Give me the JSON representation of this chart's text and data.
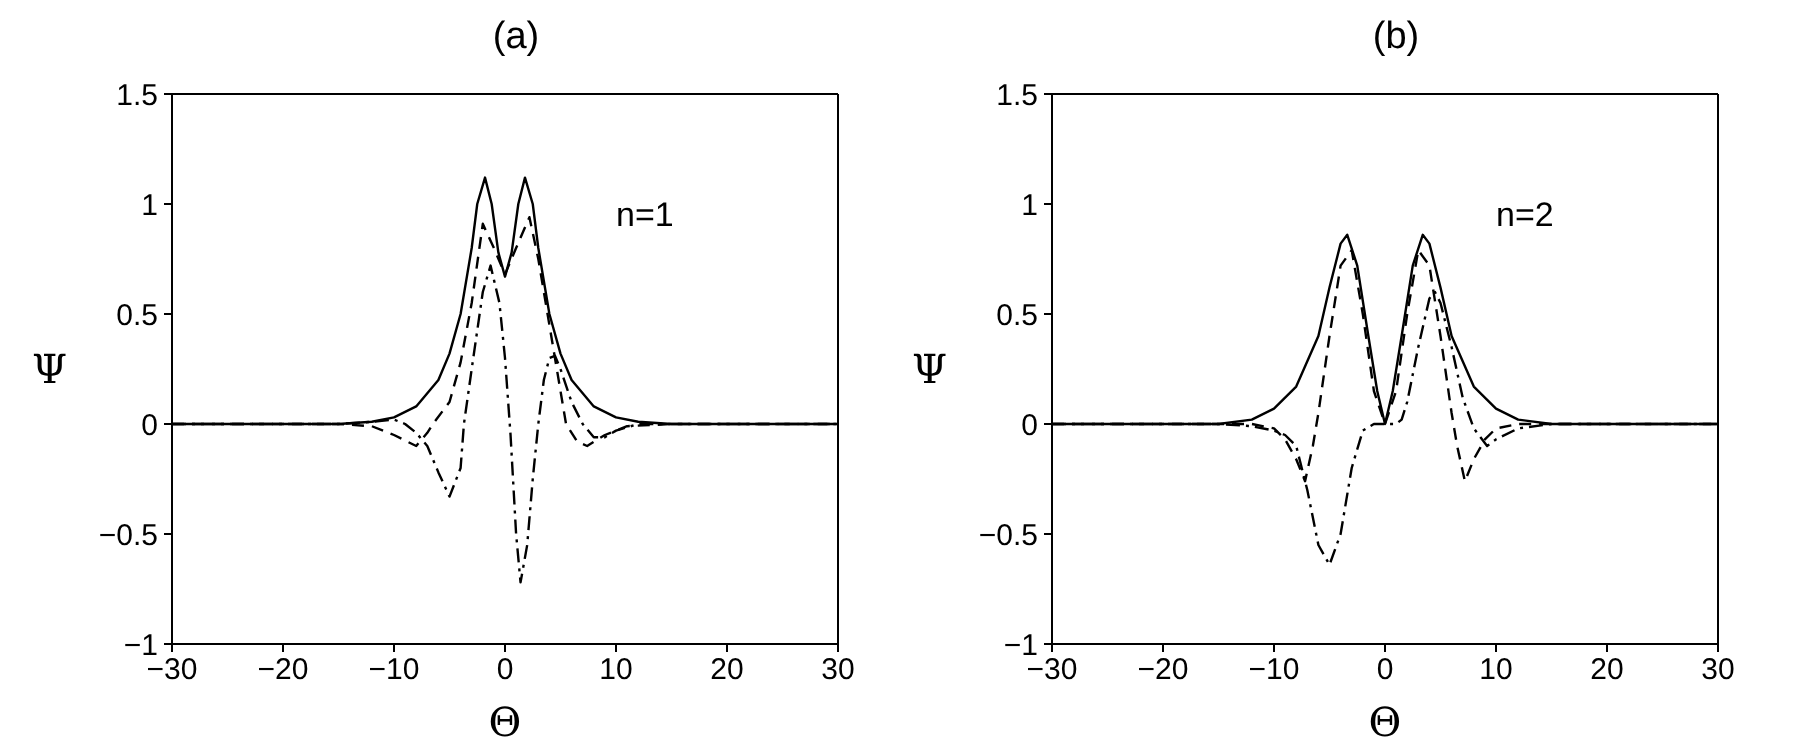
{
  "chart_data": [
    {
      "type": "line",
      "title": "(a)",
      "xlabel": "Θ",
      "ylabel": "Ψ",
      "annotations": [
        "n=1"
      ],
      "xlim": [
        -30,
        30
      ],
      "xticks": [
        -30,
        -20,
        -10,
        0,
        10,
        20,
        30
      ],
      "ylim": [
        -1,
        1.5
      ],
      "yticks": [
        -1,
        -0.5,
        0,
        0.5,
        1,
        1.5
      ],
      "grid": false,
      "legend": false,
      "marker": "none",
      "series": [
        {
          "color": "#000000",
          "line_style": "solid",
          "x": [
            -30,
            -15,
            -12,
            -10,
            -8,
            -6,
            -5,
            -4,
            -3,
            -2.5,
            -1.8,
            -1.2,
            -0.6,
            0,
            0.6,
            1.2,
            1.8,
            2.5,
            3,
            4,
            5,
            6,
            8,
            10,
            12,
            15,
            30
          ],
          "values": [
            0,
            0,
            0.01,
            0.03,
            0.08,
            0.2,
            0.32,
            0.5,
            0.8,
            1.0,
            1.12,
            1.0,
            0.78,
            0.67,
            0.78,
            1.0,
            1.12,
            1.0,
            0.8,
            0.5,
            0.32,
            0.2,
            0.08,
            0.03,
            0.01,
            0,
            0
          ]
        },
        {
          "color": "#000000",
          "line_style": "dashed",
          "x": [
            -30,
            -15,
            -12,
            -10,
            -8,
            -7,
            -6.5,
            -5,
            -4,
            -3,
            -2,
            -1,
            0,
            1,
            2.2,
            3,
            4,
            5,
            5.5,
            6.5,
            7.4,
            9,
            11,
            15,
            30
          ],
          "values": [
            0,
            0,
            -0.01,
            -0.05,
            -0.1,
            -0.04,
            0,
            0.1,
            0.28,
            0.55,
            0.91,
            0.8,
            0.68,
            0.8,
            0.94,
            0.75,
            0.45,
            0.15,
            0,
            -0.08,
            -0.1,
            -0.05,
            -0.01,
            0,
            0
          ]
        },
        {
          "color": "#000000",
          "line_style": "dashdot",
          "x": [
            -30,
            -15,
            -12,
            -10,
            -9,
            -8,
            -7,
            -6,
            -5,
            -4,
            -3.7,
            -3,
            -2,
            -1.3,
            -0.5,
            0,
            0.5,
            1,
            1.4,
            2,
            2.5,
            3,
            3.5,
            4,
            4.5,
            5,
            6,
            7,
            8,
            9,
            10,
            12,
            15,
            30
          ],
          "values": [
            0,
            0,
            0.01,
            0.02,
            0,
            -0.04,
            -0.1,
            -0.22,
            -0.33,
            -0.2,
            0,
            0.25,
            0.6,
            0.72,
            0.55,
            0.3,
            -0.05,
            -0.5,
            -0.72,
            -0.55,
            -0.25,
            0,
            0.2,
            0.3,
            0.31,
            0.25,
            0.1,
            0,
            -0.06,
            -0.06,
            -0.03,
            0,
            0,
            0
          ]
        }
      ]
    },
    {
      "type": "line",
      "title": "(b)",
      "xlabel": "Θ",
      "ylabel": "Ψ",
      "annotations": [
        "n=2"
      ],
      "xlim": [
        -30,
        30
      ],
      "xticks": [
        -30,
        -20,
        -10,
        0,
        10,
        20,
        30
      ],
      "ylim": [
        -1,
        1.5
      ],
      "yticks": [
        -1,
        -0.5,
        0,
        0.5,
        1,
        1.5
      ],
      "grid": false,
      "legend": false,
      "marker": "none",
      "series": [
        {
          "color": "#000000",
          "line_style": "solid",
          "x": [
            -30,
            -15,
            -12,
            -10,
            -8,
            -6,
            -5,
            -4,
            -3.4,
            -2.5,
            -1.5,
            -0.7,
            0,
            0.7,
            1.5,
            2.5,
            3.4,
            4,
            5,
            6,
            8,
            10,
            12,
            15,
            30
          ],
          "values": [
            0,
            0,
            0.02,
            0.07,
            0.17,
            0.4,
            0.62,
            0.82,
            0.86,
            0.72,
            0.4,
            0.15,
            0,
            0.15,
            0.4,
            0.72,
            0.86,
            0.82,
            0.62,
            0.4,
            0.17,
            0.07,
            0.02,
            0,
            0
          ]
        },
        {
          "color": "#000000",
          "line_style": "dashed",
          "x": [
            -30,
            -15,
            -12,
            -10,
            -9,
            -8,
            -7.2,
            -6.5,
            -6,
            -5,
            -4,
            -3,
            -2,
            -1,
            0,
            1,
            2,
            3,
            4,
            5,
            6,
            6.5,
            7.2,
            8,
            9,
            10,
            12,
            15,
            30
          ],
          "values": [
            0,
            0,
            0,
            -0.02,
            -0.07,
            -0.16,
            -0.26,
            -0.1,
            0.05,
            0.4,
            0.72,
            0.79,
            0.5,
            0.15,
            0,
            0.15,
            0.5,
            0.79,
            0.72,
            0.4,
            0.05,
            -0.1,
            -0.26,
            -0.16,
            -0.07,
            -0.02,
            0,
            0,
            0
          ]
        },
        {
          "color": "#000000",
          "line_style": "dashdot",
          "x": [
            -30,
            -15,
            -12,
            -10,
            -9,
            -8,
            -7,
            -6,
            -5,
            -4,
            -3,
            -2,
            -1,
            0,
            1,
            1.5,
            2,
            3,
            4,
            4.5,
            5,
            6,
            7,
            8,
            9.2,
            10,
            12,
            15,
            30
          ],
          "values": [
            0,
            0,
            -0.01,
            -0.03,
            -0.05,
            -0.1,
            -0.3,
            -0.55,
            -0.64,
            -0.5,
            -0.2,
            -0.03,
            0,
            0,
            0,
            0.02,
            0.1,
            0.35,
            0.57,
            0.6,
            0.55,
            0.35,
            0.12,
            -0.02,
            -0.1,
            -0.07,
            -0.02,
            0,
            0
          ]
        }
      ]
    }
  ]
}
